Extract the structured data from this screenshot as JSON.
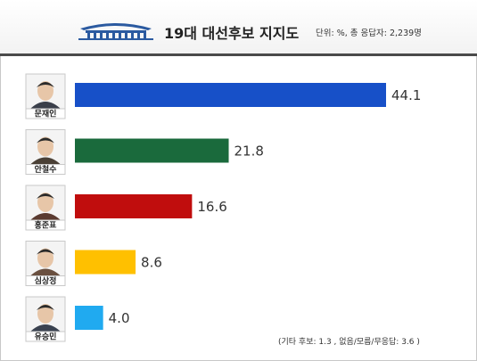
{
  "header": {
    "title": "19대 대선후보 지지도",
    "subtitle": "단위: %, 총 응답자: 2,239명"
  },
  "note": "(기타 후보: 1.3 , 없음/모름/무응답: 3.6 )",
  "chart_data": {
    "type": "bar",
    "orientation": "horizontal",
    "title": "19대 대선후보 지지도",
    "unit": "%",
    "categories": [
      "문재인",
      "안철수",
      "홍준표",
      "심상정",
      "유승민"
    ],
    "values": [
      44.1,
      21.8,
      16.6,
      8.6,
      4.0
    ],
    "value_labels": [
      "44.1",
      "21.8",
      "16.6",
      "8.6",
      "4.0"
    ],
    "colors": [
      "#1750c8",
      "#1a6a3c",
      "#c00d0d",
      "#ffc000",
      "#20aaf0"
    ],
    "avatar_colors": [
      "#3a3f4a",
      "#4a4036",
      "#5a3a30",
      "#6a5040",
      "#3a4250"
    ],
    "xlim": [
      0,
      44.1
    ],
    "grid": false,
    "legend": "none"
  }
}
